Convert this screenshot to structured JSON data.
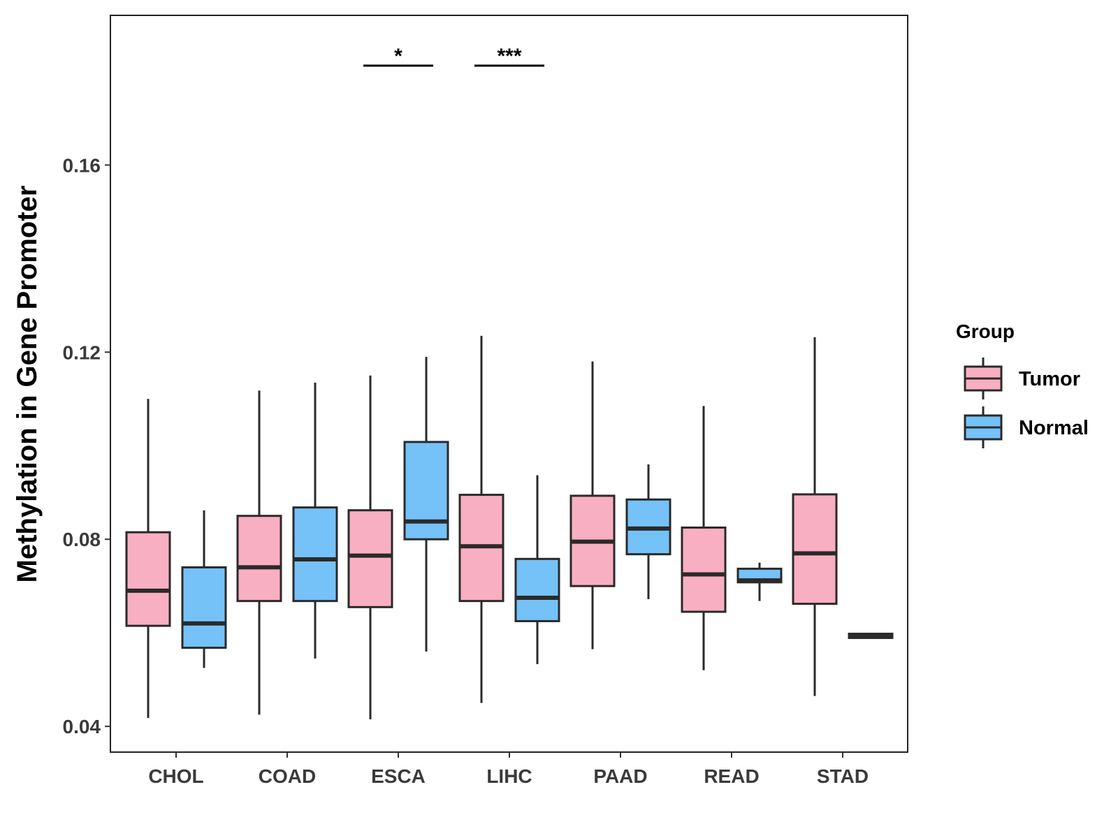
{
  "chart_data": {
    "type": "boxplot",
    "title": "",
    "xlabel": "",
    "ylabel": "Methylation in Gene Promoter",
    "ylim": [
      0.0345,
      0.192
    ],
    "y_ticks": [
      0.04,
      0.08,
      0.12,
      0.16
    ],
    "y_tick_labels": [
      "0.04",
      "0.08",
      "0.12",
      "0.16"
    ],
    "grid": false,
    "categories": [
      "CHOL",
      "COAD",
      "ESCA",
      "LIHC",
      "PAAD",
      "READ",
      "STAD"
    ],
    "series": [
      {
        "name": "Tumor",
        "color": "#F9AFC2",
        "boxes": [
          {
            "min": 0.0418,
            "q1": 0.0615,
            "median": 0.069,
            "q3": 0.0815,
            "max": 0.11
          },
          {
            "min": 0.0425,
            "q1": 0.0668,
            "median": 0.074,
            "q3": 0.085,
            "max": 0.1118
          },
          {
            "min": 0.0415,
            "q1": 0.0655,
            "median": 0.0765,
            "q3": 0.0862,
            "max": 0.115
          },
          {
            "min": 0.045,
            "q1": 0.0668,
            "median": 0.0785,
            "q3": 0.0895,
            "max": 0.1235
          },
          {
            "min": 0.0565,
            "q1": 0.07,
            "median": 0.0795,
            "q3": 0.0893,
            "max": 0.118
          },
          {
            "min": 0.052,
            "q1": 0.0645,
            "median": 0.0725,
            "q3": 0.0825,
            "max": 0.1085
          },
          {
            "min": 0.0465,
            "q1": 0.0662,
            "median": 0.077,
            "q3": 0.0896,
            "max": 0.1232
          }
        ]
      },
      {
        "name": "Normal",
        "color": "#75C2F8",
        "boxes": [
          {
            "min": 0.0525,
            "q1": 0.0568,
            "median": 0.062,
            "q3": 0.074,
            "max": 0.0862
          },
          {
            "min": 0.0545,
            "q1": 0.0668,
            "median": 0.0757,
            "q3": 0.0868,
            "max": 0.1135
          },
          {
            "min": 0.056,
            "q1": 0.08,
            "median": 0.0838,
            "q3": 0.1008,
            "max": 0.119
          },
          {
            "min": 0.0533,
            "q1": 0.0625,
            "median": 0.0675,
            "q3": 0.0758,
            "max": 0.0937
          },
          {
            "min": 0.0672,
            "q1": 0.0768,
            "median": 0.0823,
            "q3": 0.0885,
            "max": 0.096
          },
          {
            "min": 0.0668,
            "q1": 0.0708,
            "median": 0.0712,
            "q3": 0.0737,
            "max": 0.075
          },
          {
            "min": 0.059,
            "q1": 0.0592,
            "median": 0.0595,
            "q3": 0.0598,
            "max": 0.06
          }
        ]
      }
    ],
    "significance": [
      {
        "category": "ESCA",
        "label": "*"
      },
      {
        "category": "LIHC",
        "label": "***"
      }
    ],
    "legend": {
      "title": "Group",
      "entries": [
        "Tumor",
        "Normal"
      ],
      "position": "right"
    }
  }
}
